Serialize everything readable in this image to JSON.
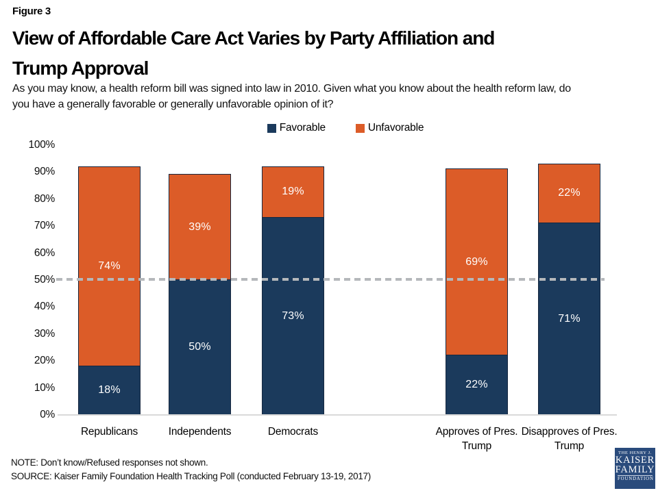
{
  "figure_label": "Figure 3",
  "title_line1": "View of Affordable Care Act Varies by Party Affiliation and",
  "title_line2": "Trump Approval",
  "subtitle_line1": "As you may know, a health reform bill was signed into law in 2010. Given what you know about the health reform law, do",
  "subtitle_line2": "you have a generally favorable or generally unfavorable opinion of it?",
  "legend": [
    {
      "label": "Favorable",
      "color": "#1b3a5c"
    },
    {
      "label": "Unfavorable",
      "color": "#dc5c28"
    }
  ],
  "chart_data": {
    "type": "bar",
    "stacked": true,
    "title": "View of Affordable Care Act Varies by Party Affiliation and Trump Approval",
    "categories": [
      "Republicans",
      "Independents",
      "Democrats",
      "Approves of Pres. Trump",
      "Disapproves of Pres. Trump"
    ],
    "series": [
      {
        "name": "Favorable",
        "color": "#1b3a5c",
        "values": [
          18,
          50,
          73,
          22,
          71
        ]
      },
      {
        "name": "Unfavorable",
        "color": "#dc5c28",
        "values": [
          74,
          39,
          19,
          69,
          22
        ]
      }
    ],
    "value_label_format": "percent",
    "y_ticks": [
      "0%",
      "10%",
      "20%",
      "30%",
      "40%",
      "50%",
      "60%",
      "70%",
      "80%",
      "90%",
      "100%"
    ],
    "ylim": [
      0,
      100
    ],
    "reference_line_value": 50,
    "grid": false,
    "legend_position": "top"
  },
  "note": "NOTE: Don’t know/Refused responses not shown.",
  "source": "SOURCE: Kaiser Family Foundation Health Tracking Poll (conducted February 13-19, 2017)",
  "logo": {
    "line1": "THE HENRY J.",
    "line2": "KAISER",
    "line3": "FAMILY",
    "line4": "FOUNDATION",
    "background": "#2a4b7c"
  },
  "colors": {
    "favorable": "#1b3a5c",
    "unfavorable": "#dc5c28",
    "reference_line": "#b5b8bb",
    "axis_line": "#d9d9d9",
    "bar_border": "#16273f"
  }
}
